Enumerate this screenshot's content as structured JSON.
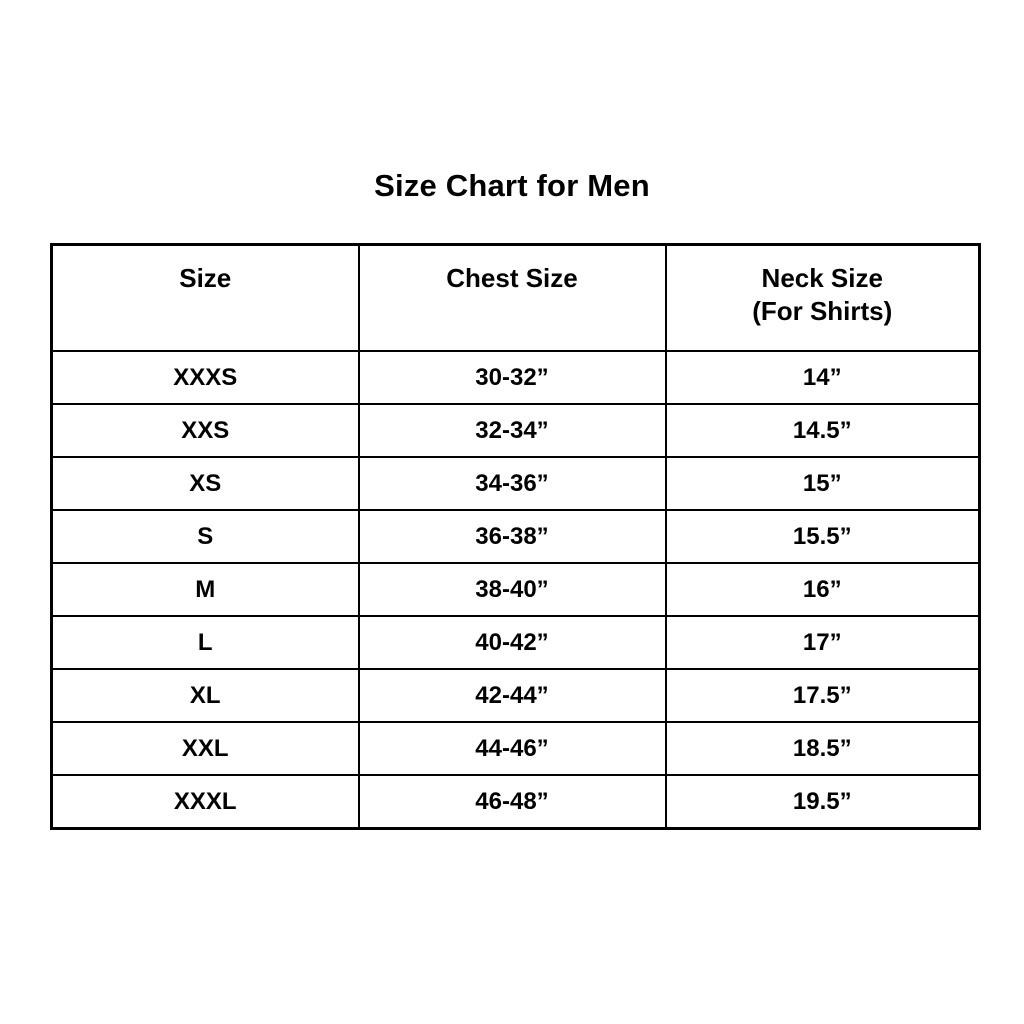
{
  "title": "Size Chart for Men",
  "chart_data": {
    "type": "table",
    "title": "Size Chart for Men",
    "columns": [
      "Size",
      "Chest Size",
      "Neck Size\n(For Shirts)"
    ],
    "rows": [
      [
        "XXXS",
        "30-32”",
        "14”"
      ],
      [
        "XXS",
        "32-34”",
        "14.5”"
      ],
      [
        "XS",
        "34-36”",
        "15”"
      ],
      [
        "S",
        "36-38”",
        "15.5”"
      ],
      [
        "M",
        "38-40”",
        "16”"
      ],
      [
        "L",
        "40-42”",
        "17”"
      ],
      [
        "XL",
        "42-44”",
        "17.5”"
      ],
      [
        "XXL",
        "44-46”",
        "18.5”"
      ],
      [
        "XXXL",
        "46-48”",
        "19.5”"
      ]
    ],
    "layout": {
      "text_color": "#000000",
      "border_color": "#000000",
      "background_color": "#ffffff",
      "grid": true
    }
  }
}
